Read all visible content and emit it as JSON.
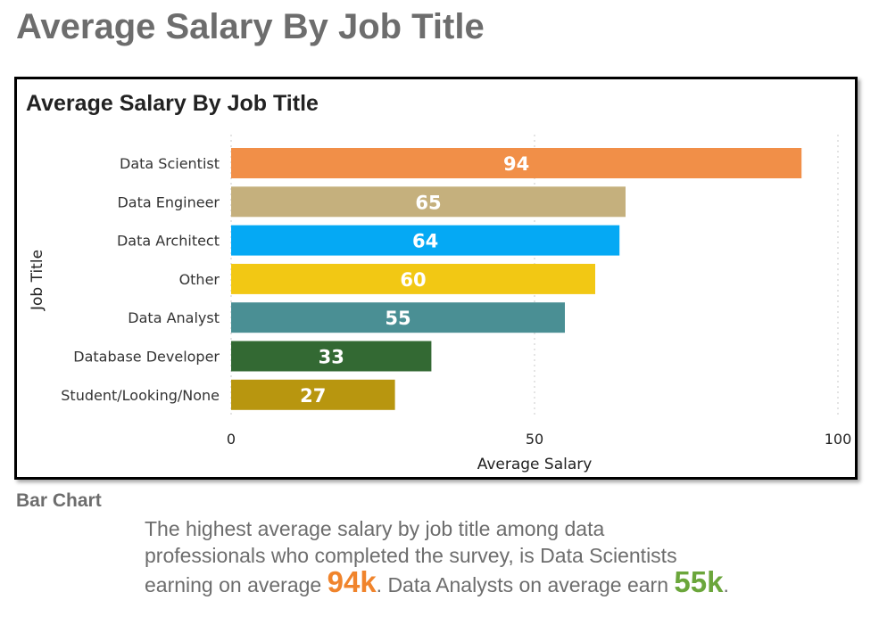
{
  "page": {
    "title": "Average Salary By Job Title",
    "caption_label": "Bar Chart",
    "description": {
      "line1": "The highest average salary by job title among data",
      "line2": "professionals who completed the survey, is Data Scientists",
      "part3a": "earning on average ",
      "highlight1": "94k",
      "part3b": ". Data Analysts on average earn ",
      "highlight2": "55k",
      "part3c": ".",
      "highlight1_color": "#f0842c",
      "highlight2_color": "#6ba63b"
    }
  },
  "chart_data": {
    "type": "bar",
    "orientation": "horizontal",
    "title": "Average Salary By Job Title",
    "xlabel": "Average Salary",
    "ylabel": "Job Title",
    "xlim": [
      0,
      100
    ],
    "xticks": [
      0,
      50,
      100
    ],
    "grid": true,
    "categories": [
      "Data Scientist",
      "Data Engineer",
      "Data Architect",
      "Other",
      "Data Analyst",
      "Database Developer",
      "Student/Looking/None"
    ],
    "values": [
      94,
      65,
      64,
      60,
      55,
      33,
      27
    ],
    "colors": [
      "#f18f48",
      "#c5b07d",
      "#05a9f4",
      "#f2c814",
      "#4a8f94",
      "#336933",
      "#b8960f"
    ]
  }
}
